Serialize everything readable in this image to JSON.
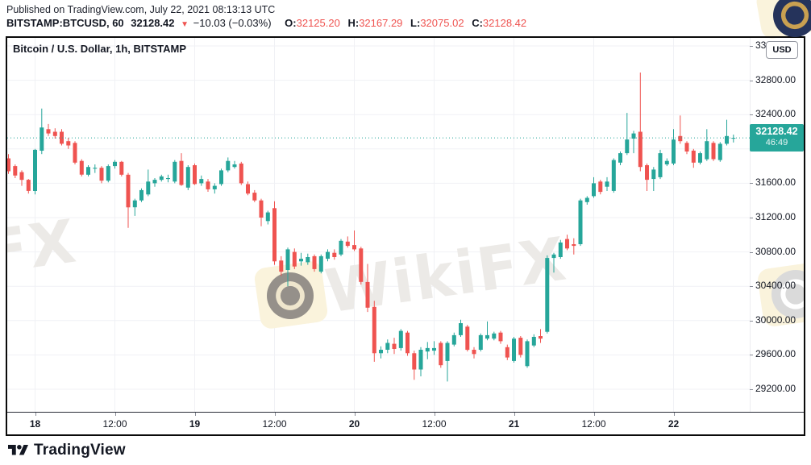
{
  "header": {
    "published_line": "Published on TradingView.com, July 22, 2021 08:13:13 UTC",
    "symbol_line": {
      "symbol": "BITSTAMP:BTCUSD, 60",
      "last_price": "32128.42",
      "direction_icon": "down-triangle",
      "change": "−10.03 (−0.03%)",
      "ohlc": [
        {
          "label": "O:",
          "value": "32125.20"
        },
        {
          "label": "H:",
          "value": "32167.29"
        },
        {
          "label": "L:",
          "value": "32075.02"
        },
        {
          "label": "C:",
          "value": "32128.42"
        }
      ]
    }
  },
  "chart": {
    "title": "Bitcoin / U.S. Dollar, 1h, BITSTAMP",
    "currency_badge": "USD",
    "price_tag": {
      "price": "32128.42",
      "countdown": "46:49"
    },
    "watermark_text": "WikiFX"
  },
  "footer": {
    "brand": "TradingView"
  },
  "colors": {
    "up": "#26a69a",
    "down": "#ef5350",
    "value_red": "#ef5350",
    "brand_navy": "#131722",
    "tag_bg": "#26a69a"
  },
  "chart_data": {
    "type": "candlestick",
    "title": "Bitcoin / U.S. Dollar, 1h, BITSTAMP",
    "symbol": "BITSTAMP:BTCUSD",
    "interval": "1h",
    "grid": true,
    "start_time": "2021-07-17 20:00 UTC",
    "interval_hours": 1,
    "price_axis": {
      "gridlines": [
        33200,
        32800,
        32400,
        32000,
        31600,
        31200,
        30800,
        30400,
        30000,
        29600,
        29200
      ],
      "visible_range": [
        29050,
        33300
      ],
      "last_price": 32128.42,
      "countdown": "46:49"
    },
    "time_axis": {
      "labels": [
        {
          "text": "18",
          "hours": 4,
          "day": true
        },
        {
          "text": "12:00",
          "hours": 16,
          "day": false
        },
        {
          "text": "19",
          "hours": 28,
          "day": true
        },
        {
          "text": "12:00",
          "hours": 40,
          "day": false
        },
        {
          "text": "20",
          "hours": 52,
          "day": true
        },
        {
          "text": "12:00",
          "hours": 64,
          "day": false
        },
        {
          "text": "21",
          "hours": 76,
          "day": true
        },
        {
          "text": "12:00",
          "hours": 88,
          "day": false
        },
        {
          "text": "22",
          "hours": 100,
          "day": true
        }
      ]
    },
    "candles_format": [
      "open",
      "high",
      "low",
      "close"
    ],
    "candles": [
      [
        31890,
        31940,
        31710,
        31740
      ],
      [
        31800,
        31820,
        31660,
        31690
      ],
      [
        31730,
        31750,
        31570,
        31640
      ],
      [
        31640,
        31650,
        31480,
        31510
      ],
      [
        31510,
        32000,
        31470,
        31990
      ],
      [
        31980,
        32470,
        31940,
        32250
      ],
      [
        32230,
        32290,
        32150,
        32180
      ],
      [
        32200,
        32240,
        32120,
        32150
      ],
      [
        32200,
        32230,
        32040,
        32060
      ],
      [
        32090,
        32130,
        32000,
        32040
      ],
      [
        32070,
        32090,
        31820,
        31840
      ],
      [
        31860,
        31880,
        31680,
        31700
      ],
      [
        31700,
        31810,
        31680,
        31790
      ],
      [
        31770,
        31820,
        31720,
        31780
      ],
      [
        31780,
        31800,
        31600,
        31630
      ],
      [
        31630,
        31820,
        31610,
        31800
      ],
      [
        31800,
        31870,
        31770,
        31850
      ],
      [
        31850,
        31860,
        31680,
        31700
      ],
      [
        31700,
        31720,
        31080,
        31320
      ],
      [
        31320,
        31420,
        31220,
        31400
      ],
      [
        31400,
        31540,
        31380,
        31520
      ],
      [
        31470,
        31760,
        31450,
        31620
      ],
      [
        31600,
        31660,
        31560,
        31640
      ],
      [
        31640,
        31700,
        31620,
        31680
      ],
      [
        31650,
        31700,
        31610,
        31660
      ],
      [
        31620,
        31870,
        31600,
        31850
      ],
      [
        31860,
        31950,
        31570,
        31580
      ],
      [
        31550,
        31810,
        31520,
        31790
      ],
      [
        31810,
        31830,
        31580,
        31590
      ],
      [
        31600,
        31690,
        31570,
        31650
      ],
      [
        31620,
        31650,
        31500,
        31530
      ],
      [
        31530,
        31600,
        31480,
        31570
      ],
      [
        31590,
        31770,
        31570,
        31750
      ],
      [
        31750,
        31900,
        31730,
        31860
      ],
      [
        31790,
        31860,
        31770,
        31820
      ],
      [
        31830,
        31850,
        31580,
        31600
      ],
      [
        31590,
        31620,
        31460,
        31480
      ],
      [
        31490,
        31520,
        31380,
        31400
      ],
      [
        31400,
        31420,
        31100,
        31200
      ],
      [
        31160,
        31280,
        31120,
        31260
      ],
      [
        31310,
        31390,
        30650,
        30690
      ],
      [
        30700,
        30750,
        30520,
        30570
      ],
      [
        30590,
        30850,
        30400,
        30830
      ],
      [
        30800,
        30840,
        30600,
        30630
      ],
      [
        30690,
        30790,
        30640,
        30720
      ],
      [
        30680,
        30780,
        30650,
        30740
      ],
      [
        30750,
        30770,
        30570,
        30600
      ],
      [
        30570,
        30770,
        30550,
        30750
      ],
      [
        30720,
        30830,
        30690,
        30800
      ],
      [
        30790,
        30830,
        30710,
        30740
      ],
      [
        30770,
        30950,
        30750,
        30930
      ],
      [
        30920,
        30980,
        30850,
        30870
      ],
      [
        30880,
        31050,
        30810,
        30830
      ],
      [
        30840,
        30860,
        30420,
        30450
      ],
      [
        30450,
        30660,
        30100,
        30150
      ],
      [
        30160,
        30230,
        29520,
        29620
      ],
      [
        29620,
        29700,
        29560,
        29660
      ],
      [
        29660,
        29780,
        29620,
        29740
      ],
      [
        29730,
        29800,
        29610,
        29670
      ],
      [
        29680,
        29900,
        29650,
        29880
      ],
      [
        29860,
        29880,
        29590,
        29620
      ],
      [
        29620,
        29650,
        29310,
        29430
      ],
      [
        29430,
        29690,
        29350,
        29660
      ],
      [
        29640,
        29750,
        29550,
        29680
      ],
      [
        29650,
        29760,
        29600,
        29680
      ],
      [
        29740,
        29760,
        29450,
        29480
      ],
      [
        29530,
        29760,
        29290,
        29740
      ],
      [
        29720,
        29860,
        29700,
        29830
      ],
      [
        29830,
        30010,
        29810,
        29970
      ],
      [
        29930,
        29950,
        29640,
        29660
      ],
      [
        29660,
        29690,
        29560,
        29610
      ],
      [
        29660,
        29850,
        29640,
        29830
      ],
      [
        29790,
        29990,
        29770,
        29830
      ],
      [
        29790,
        29870,
        29770,
        29850
      ],
      [
        29860,
        29880,
        29730,
        29760
      ],
      [
        29690,
        29720,
        29540,
        29570
      ],
      [
        29530,
        29810,
        29510,
        29790
      ],
      [
        29800,
        29820,
        29570,
        29600
      ],
      [
        29470,
        29780,
        29450,
        29760
      ],
      [
        29710,
        29840,
        29690,
        29810
      ],
      [
        29820,
        29900,
        29740,
        29790
      ],
      [
        29870,
        30760,
        29850,
        30730
      ],
      [
        30730,
        30790,
        30560,
        30770
      ],
      [
        30740,
        30940,
        30720,
        30910
      ],
      [
        30950,
        31000,
        30820,
        30840
      ],
      [
        30890,
        30960,
        30770,
        30870
      ],
      [
        30890,
        31420,
        30870,
        31400
      ],
      [
        31380,
        31450,
        31350,
        31430
      ],
      [
        31450,
        31670,
        31430,
        31600
      ],
      [
        31620,
        31640,
        31470,
        31500
      ],
      [
        31560,
        31670,
        31510,
        31620
      ],
      [
        31510,
        31890,
        31490,
        31870
      ],
      [
        31840,
        31970,
        31810,
        31950
      ],
      [
        31950,
        32420,
        31930,
        32110
      ],
      [
        32120,
        32210,
        31950,
        32180
      ],
      [
        32200,
        32890,
        31740,
        31790
      ],
      [
        31810,
        31830,
        31510,
        31640
      ],
      [
        31650,
        31790,
        31510,
        31760
      ],
      [
        31670,
        31990,
        31650,
        31950
      ],
      [
        31820,
        31890,
        31800,
        31860
      ],
      [
        31830,
        32230,
        31810,
        32110
      ],
      [
        32150,
        32390,
        32060,
        32090
      ],
      [
        32070,
        32090,
        31940,
        31970
      ],
      [
        31980,
        32000,
        31780,
        31840
      ],
      [
        31840,
        31970,
        31820,
        31950
      ],
      [
        31880,
        32230,
        31860,
        32090
      ],
      [
        32070,
        32090,
        31860,
        31880
      ],
      [
        31870,
        32080,
        31850,
        32060
      ],
      [
        32060,
        32340,
        32040,
        32150
      ],
      [
        32125.2,
        32167.29,
        32075.02,
        32128.42
      ]
    ]
  }
}
